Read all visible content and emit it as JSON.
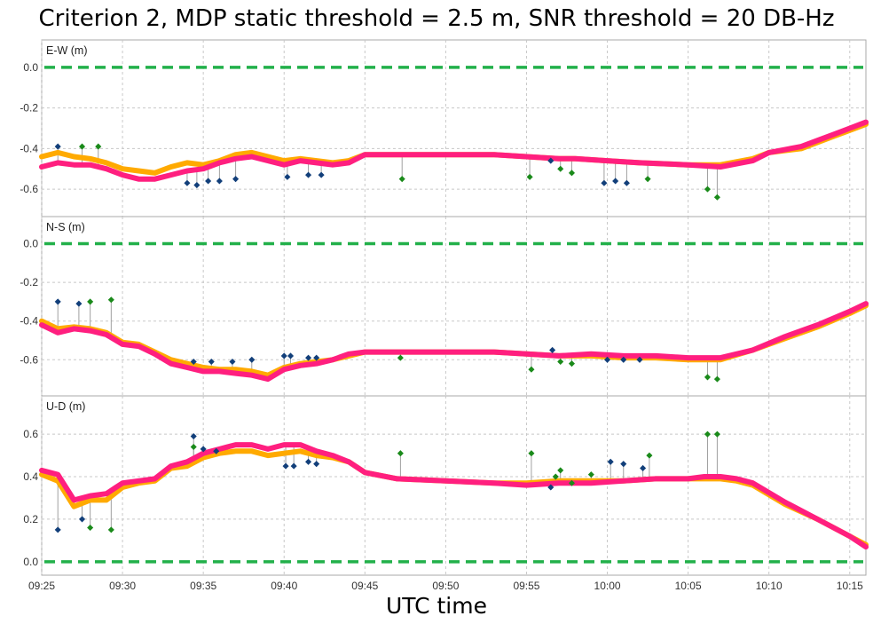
{
  "chart_data": {
    "type": "line",
    "title": "Criterion 2, MDP static threshold = 2.5 m, SNR threshold = 20 DB-Hz",
    "xlabel": "UTC time",
    "x_ticks": [
      "09:25",
      "09:30",
      "09:35",
      "09:40",
      "09:45",
      "09:50",
      "09:55",
      "10:00",
      "10:05",
      "10:10",
      "10:15"
    ],
    "x_tick_minutes": [
      0,
      5,
      10,
      15,
      20,
      25,
      30,
      35,
      40,
      45,
      50
    ],
    "xlim_minutes": [
      0,
      51
    ],
    "grid": true,
    "colors": {
      "series_magenta": "#ff1f7f",
      "series_orange": "#ffaa00",
      "zero_line": "#22b04a",
      "outlier_blue": "#123f7a",
      "outlier_green": "#1a8a1a",
      "stem": "#a0a0a0"
    },
    "panels": [
      {
        "label": "E-W (m)",
        "yticks": [
          "0.0",
          "-0.2",
          "-0.4",
          "-0.6"
        ],
        "ytick_values": [
          0.0,
          -0.2,
          -0.4,
          -0.6
        ],
        "ylim": [
          -0.7,
          0.03
        ],
        "series": [
          {
            "color": "#ffaa00",
            "x": [
              0,
              1,
              2,
              3,
              4,
              5,
              6,
              7,
              8,
              9,
              10,
              11,
              12,
              13,
              14,
              15,
              16,
              17,
              18,
              19,
              20,
              22,
              25,
              28,
              30,
              32,
              33,
              35,
              37,
              40,
              42,
              44,
              45,
              47,
              48,
              49,
              50,
              51
            ],
            "y": [
              -0.44,
              -0.42,
              -0.44,
              -0.45,
              -0.47,
              -0.5,
              -0.51,
              -0.52,
              -0.49,
              -0.47,
              -0.48,
              -0.46,
              -0.43,
              -0.42,
              -0.44,
              -0.46,
              -0.45,
              -0.46,
              -0.47,
              -0.46,
              -0.43,
              -0.43,
              -0.43,
              -0.43,
              -0.44,
              -0.45,
              -0.45,
              -0.46,
              -0.47,
              -0.48,
              -0.48,
              -0.45,
              -0.42,
              -0.4,
              -0.37,
              -0.34,
              -0.31,
              -0.28
            ]
          },
          {
            "color": "#ff1f7f",
            "x": [
              0,
              1,
              2,
              3,
              4,
              5,
              6,
              7,
              8,
              9,
              10,
              11,
              12,
              13,
              14,
              15,
              16,
              17,
              18,
              19,
              20,
              22,
              25,
              28,
              30,
              32,
              33,
              35,
              37,
              40,
              42,
              44,
              45,
              47,
              48,
              49,
              50,
              51
            ],
            "y": [
              -0.49,
              -0.47,
              -0.48,
              -0.48,
              -0.5,
              -0.53,
              -0.55,
              -0.55,
              -0.53,
              -0.51,
              -0.5,
              -0.47,
              -0.45,
              -0.44,
              -0.46,
              -0.48,
              -0.46,
              -0.47,
              -0.48,
              -0.47,
              -0.43,
              -0.43,
              -0.43,
              -0.43,
              -0.44,
              -0.45,
              -0.45,
              -0.46,
              -0.47,
              -0.48,
              -0.49,
              -0.46,
              -0.42,
              -0.39,
              -0.36,
              -0.33,
              -0.3,
              -0.27
            ]
          }
        ],
        "outliers": [
          {
            "x": 1.0,
            "y": -0.39,
            "color": "blue"
          },
          {
            "x": 2.5,
            "y": -0.39,
            "color": "green"
          },
          {
            "x": 3.5,
            "y": -0.39,
            "color": "green"
          },
          {
            "x": 9.0,
            "y": -0.57,
            "color": "blue"
          },
          {
            "x": 9.6,
            "y": -0.58,
            "color": "blue"
          },
          {
            "x": 10.3,
            "y": -0.56,
            "color": "blue"
          },
          {
            "x": 11.0,
            "y": -0.56,
            "color": "blue"
          },
          {
            "x": 12.0,
            "y": -0.55,
            "color": "blue"
          },
          {
            "x": 15.2,
            "y": -0.54,
            "color": "blue"
          },
          {
            "x": 16.5,
            "y": -0.53,
            "color": "blue"
          },
          {
            "x": 17.3,
            "y": -0.53,
            "color": "blue"
          },
          {
            "x": 22.3,
            "y": -0.55,
            "color": "green"
          },
          {
            "x": 30.2,
            "y": -0.54,
            "color": "green"
          },
          {
            "x": 31.5,
            "y": -0.46,
            "color": "blue"
          },
          {
            "x": 32.1,
            "y": -0.5,
            "color": "green"
          },
          {
            "x": 32.8,
            "y": -0.52,
            "color": "green"
          },
          {
            "x": 34.8,
            "y": -0.57,
            "color": "blue"
          },
          {
            "x": 35.5,
            "y": -0.56,
            "color": "blue"
          },
          {
            "x": 36.2,
            "y": -0.57,
            "color": "blue"
          },
          {
            "x": 37.5,
            "y": -0.55,
            "color": "green"
          },
          {
            "x": 41.2,
            "y": -0.6,
            "color": "green"
          },
          {
            "x": 41.8,
            "y": -0.64,
            "color": "green"
          }
        ]
      },
      {
        "label": "N-S (m)",
        "yticks": [
          "0.0",
          "-0.2",
          "-0.4",
          "-0.6"
        ],
        "ytick_values": [
          0.0,
          -0.2,
          -0.4,
          -0.6
        ],
        "ylim": [
          -0.75,
          0.03
        ],
        "series": [
          {
            "color": "#ffaa00",
            "x": [
              0,
              1,
              2,
              3,
              4,
              5,
              6,
              7,
              8,
              9,
              10,
              11,
              12,
              13,
              14,
              15,
              16,
              17,
              18,
              19,
              20,
              22,
              25,
              28,
              30,
              32,
              34,
              36,
              38,
              40,
              41,
              42,
              44,
              46,
              48,
              50,
              51
            ],
            "y": [
              -0.4,
              -0.44,
              -0.43,
              -0.44,
              -0.46,
              -0.51,
              -0.52,
              -0.56,
              -0.6,
              -0.62,
              -0.64,
              -0.65,
              -0.65,
              -0.66,
              -0.68,
              -0.64,
              -0.62,
              -0.61,
              -0.6,
              -0.58,
              -0.56,
              -0.56,
              -0.56,
              -0.56,
              -0.57,
              -0.58,
              -0.58,
              -0.59,
              -0.59,
              -0.6,
              -0.6,
              -0.6,
              -0.55,
              -0.49,
              -0.43,
              -0.36,
              -0.32
            ]
          },
          {
            "color": "#ff1f7f",
            "x": [
              0,
              1,
              2,
              3,
              4,
              5,
              6,
              7,
              8,
              9,
              10,
              11,
              12,
              13,
              14,
              15,
              16,
              17,
              18,
              19,
              20,
              22,
              25,
              28,
              30,
              32,
              34,
              36,
              38,
              40,
              41,
              42,
              44,
              46,
              48,
              50,
              51
            ],
            "y": [
              -0.42,
              -0.46,
              -0.44,
              -0.45,
              -0.47,
              -0.52,
              -0.53,
              -0.57,
              -0.62,
              -0.64,
              -0.66,
              -0.66,
              -0.67,
              -0.68,
              -0.7,
              -0.65,
              -0.63,
              -0.62,
              -0.6,
              -0.57,
              -0.56,
              -0.56,
              -0.56,
              -0.56,
              -0.57,
              -0.58,
              -0.57,
              -0.58,
              -0.58,
              -0.59,
              -0.59,
              -0.59,
              -0.55,
              -0.48,
              -0.42,
              -0.35,
              -0.31
            ]
          }
        ],
        "outliers": [
          {
            "x": 1.0,
            "y": -0.3,
            "color": "blue"
          },
          {
            "x": 2.3,
            "y": -0.31,
            "color": "blue"
          },
          {
            "x": 3.0,
            "y": -0.3,
            "color": "green"
          },
          {
            "x": 4.3,
            "y": -0.29,
            "color": "green"
          },
          {
            "x": 9.4,
            "y": -0.61,
            "color": "blue"
          },
          {
            "x": 10.5,
            "y": -0.61,
            "color": "blue"
          },
          {
            "x": 11.8,
            "y": -0.61,
            "color": "blue"
          },
          {
            "x": 13.0,
            "y": -0.6,
            "color": "blue"
          },
          {
            "x": 15.0,
            "y": -0.58,
            "color": "blue"
          },
          {
            "x": 15.4,
            "y": -0.58,
            "color": "blue"
          },
          {
            "x": 16.5,
            "y": -0.59,
            "color": "blue"
          },
          {
            "x": 17.0,
            "y": -0.59,
            "color": "blue"
          },
          {
            "x": 22.2,
            "y": -0.59,
            "color": "green"
          },
          {
            "x": 30.3,
            "y": -0.65,
            "color": "green"
          },
          {
            "x": 31.6,
            "y": -0.55,
            "color": "blue"
          },
          {
            "x": 32.1,
            "y": -0.61,
            "color": "green"
          },
          {
            "x": 32.8,
            "y": -0.62,
            "color": "green"
          },
          {
            "x": 35.0,
            "y": -0.6,
            "color": "blue"
          },
          {
            "x": 36.0,
            "y": -0.6,
            "color": "blue"
          },
          {
            "x": 37.0,
            "y": -0.6,
            "color": "blue"
          },
          {
            "x": 41.2,
            "y": -0.69,
            "color": "green"
          },
          {
            "x": 41.8,
            "y": -0.7,
            "color": "green"
          }
        ]
      },
      {
        "label": "U-D (m)",
        "yticks": [
          "0.6",
          "0.4",
          "0.2",
          "0.0"
        ],
        "ytick_values": [
          0.6,
          0.4,
          0.2,
          0.0
        ],
        "ylim": [
          -0.03,
          0.68
        ],
        "series": [
          {
            "color": "#ffaa00",
            "x": [
              0,
              1,
              2,
              3,
              4,
              5,
              6,
              7,
              8,
              9,
              10,
              11,
              12,
              13,
              14,
              15,
              16,
              17,
              18,
              19,
              20,
              22,
              25,
              28,
              30,
              32,
              34,
              36,
              38,
              40,
              41,
              42,
              43,
              44,
              46,
              48,
              50,
              51
            ],
            "y": [
              0.41,
              0.38,
              0.26,
              0.29,
              0.29,
              0.35,
              0.37,
              0.38,
              0.44,
              0.45,
              0.49,
              0.51,
              0.52,
              0.52,
              0.5,
              0.51,
              0.52,
              0.5,
              0.49,
              0.47,
              0.42,
              0.39,
              0.38,
              0.37,
              0.37,
              0.38,
              0.38,
              0.38,
              0.39,
              0.39,
              0.39,
              0.39,
              0.38,
              0.36,
              0.27,
              0.2,
              0.12,
              0.08
            ]
          },
          {
            "color": "#ff1f7f",
            "x": [
              0,
              1,
              2,
              3,
              4,
              5,
              6,
              7,
              8,
              9,
              10,
              11,
              12,
              13,
              14,
              15,
              16,
              17,
              18,
              19,
              20,
              22,
              25,
              28,
              30,
              32,
              34,
              36,
              38,
              40,
              41,
              42,
              43,
              44,
              46,
              48,
              50,
              51
            ],
            "y": [
              0.43,
              0.41,
              0.29,
              0.31,
              0.32,
              0.37,
              0.38,
              0.39,
              0.45,
              0.47,
              0.51,
              0.53,
              0.55,
              0.55,
              0.53,
              0.55,
              0.55,
              0.52,
              0.5,
              0.47,
              0.42,
              0.39,
              0.38,
              0.37,
              0.36,
              0.37,
              0.37,
              0.38,
              0.39,
              0.39,
              0.4,
              0.4,
              0.39,
              0.37,
              0.28,
              0.2,
              0.12,
              0.07
            ]
          }
        ],
        "outliers": [
          {
            "x": 1.0,
            "y": 0.15,
            "color": "blue"
          },
          {
            "x": 2.5,
            "y": 0.2,
            "color": "blue"
          },
          {
            "x": 3.0,
            "y": 0.16,
            "color": "green"
          },
          {
            "x": 4.3,
            "y": 0.15,
            "color": "green"
          },
          {
            "x": 9.4,
            "y": 0.59,
            "color": "blue"
          },
          {
            "x": 9.4,
            "y": 0.54,
            "color": "green"
          },
          {
            "x": 10.0,
            "y": 0.53,
            "color": "blue"
          },
          {
            "x": 10.8,
            "y": 0.52,
            "color": "blue"
          },
          {
            "x": 15.1,
            "y": 0.45,
            "color": "blue"
          },
          {
            "x": 15.6,
            "y": 0.45,
            "color": "blue"
          },
          {
            "x": 16.5,
            "y": 0.47,
            "color": "blue"
          },
          {
            "x": 17.0,
            "y": 0.46,
            "color": "blue"
          },
          {
            "x": 22.2,
            "y": 0.51,
            "color": "green"
          },
          {
            "x": 30.3,
            "y": 0.51,
            "color": "green"
          },
          {
            "x": 31.5,
            "y": 0.35,
            "color": "blue"
          },
          {
            "x": 31.8,
            "y": 0.4,
            "color": "green"
          },
          {
            "x": 32.1,
            "y": 0.43,
            "color": "green"
          },
          {
            "x": 32.8,
            "y": 0.37,
            "color": "green"
          },
          {
            "x": 34.0,
            "y": 0.41,
            "color": "green"
          },
          {
            "x": 35.2,
            "y": 0.47,
            "color": "blue"
          },
          {
            "x": 36.0,
            "y": 0.46,
            "color": "blue"
          },
          {
            "x": 37.2,
            "y": 0.44,
            "color": "blue"
          },
          {
            "x": 37.6,
            "y": 0.5,
            "color": "green"
          },
          {
            "x": 41.2,
            "y": 0.6,
            "color": "green"
          },
          {
            "x": 41.8,
            "y": 0.6,
            "color": "green"
          }
        ]
      }
    ]
  }
}
